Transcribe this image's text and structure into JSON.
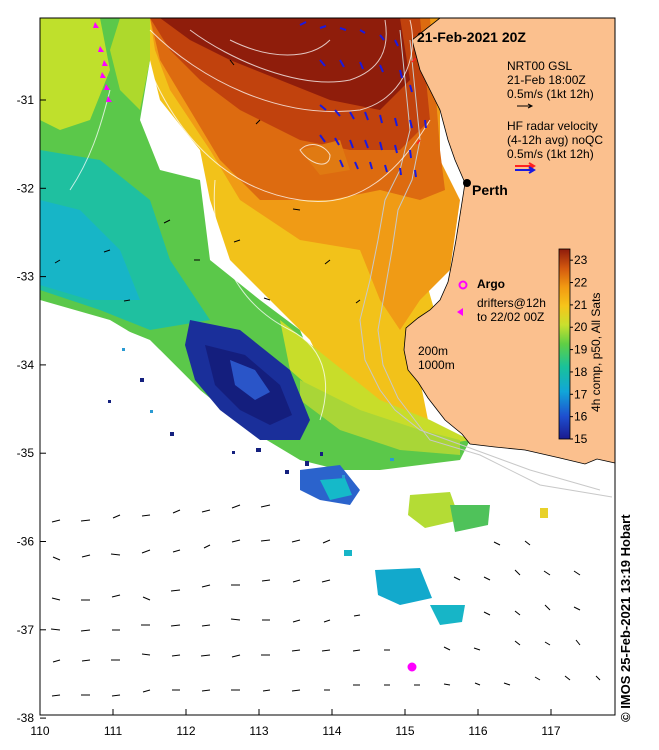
{
  "title": "21-Feb-2021 20Z",
  "place_label": "Perth",
  "legend": {
    "gsl_title": "NRT00 GSL",
    "gsl_time": "21-Feb 18:00Z",
    "gsl_scale": "0.5m/s (1kt 12h)",
    "hf_title": "HF radar velocity",
    "hf_subtitle": "(4-12h avg) noQC",
    "hf_scale": "0.5m/s (1kt 12h)",
    "argo_label": "Argo",
    "drifters_line1": "drifters@12h",
    "drifters_line2": "to 22/02 00Z",
    "depth_200": "200m",
    "depth_1000": "1000m"
  },
  "colorbar": {
    "label": "4h comp, p50, All Sats",
    "ticks": [
      "23",
      "22",
      "21",
      "20",
      "19",
      "18",
      "17",
      "16",
      "15"
    ],
    "min": 15,
    "max": 23.5
  },
  "axes": {
    "x_ticks": [
      "110",
      "111",
      "112",
      "113",
      "114",
      "115",
      "116",
      "117"
    ],
    "y_ticks": [
      "-31",
      "-32",
      "-33",
      "-34",
      "-35",
      "-36",
      "-37",
      "-38"
    ],
    "lon_range": [
      110,
      117.9
    ],
    "lat_range": [
      -38,
      -30.2
    ]
  },
  "credit": "© IMOS 25-Feb-2021 13:19 Hobart",
  "colors": {
    "land": "#fbc08e",
    "hf_arrow": "#1a1adf",
    "gsl_arrow": "#000000",
    "argo": "#ff00ff",
    "drifter": "#ff00ff"
  }
}
